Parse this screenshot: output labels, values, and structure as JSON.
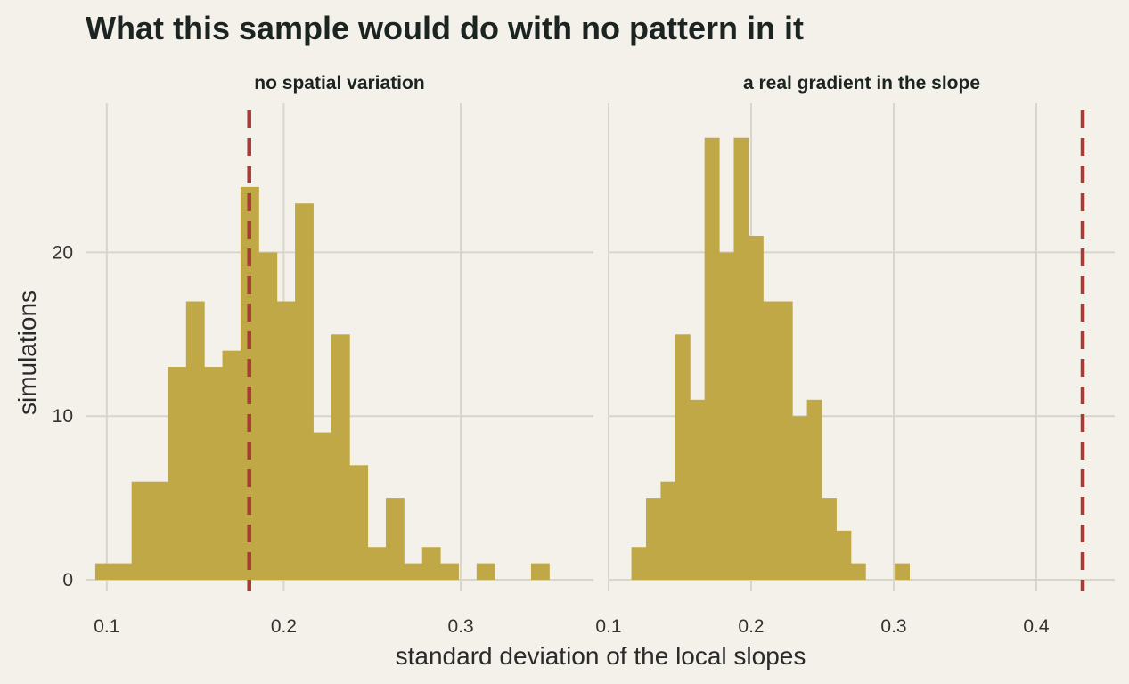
{
  "title": "What this sample would do with no pattern in it",
  "colors": {
    "background": "#f3f1ea",
    "bar": "#c0a846",
    "reference_line": "#a83a37",
    "grid": "#d8d6ca",
    "text": "#1b2420"
  },
  "chart_data": {
    "type": "histogram",
    "xlabel": "standard deviation of the local slopes",
    "ylabel": "simulations",
    "y_ticks": [
      0,
      10,
      20
    ],
    "grid": true,
    "bin_width": 0.01026,
    "panels": [
      {
        "strip_title": "no spatial variation",
        "xlim": [
          0.088,
          0.375
        ],
        "ylim": [
          0,
          28.4
        ],
        "x_ticks": [
          0.1,
          0.2,
          0.3
        ],
        "x_tick_labels": [
          "0.1",
          "0.2",
          "0.3"
        ],
        "bins_start": 0.0935,
        "counts": [
          1,
          1,
          6,
          6,
          13,
          17,
          13,
          14,
          24,
          20,
          17,
          23,
          9,
          15,
          7,
          2,
          5,
          1,
          2,
          1,
          0,
          1,
          0,
          0,
          1
        ],
        "observed": 0.1805
      },
      {
        "strip_title": "a real gradient in the slope",
        "xlim": [
          0.1,
          0.455
        ],
        "ylim": [
          0,
          28.4
        ],
        "x_ticks": [
          0.1,
          0.2,
          0.3,
          0.4
        ],
        "x_tick_labels": [
          "0.1",
          "0.2",
          "0.3",
          "0.4"
        ],
        "bins_start": 0.116,
        "counts": [
          2,
          5,
          6,
          15,
          11,
          27,
          20,
          27,
          21,
          17,
          17,
          10,
          11,
          5,
          3,
          1,
          0,
          0,
          1
        ],
        "observed": 0.4325
      }
    ]
  }
}
